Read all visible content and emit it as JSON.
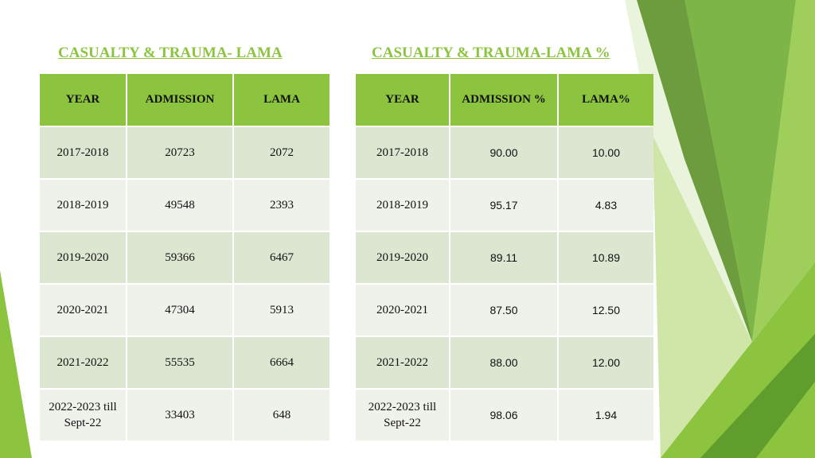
{
  "tables": [
    {
      "title": "CASUALTY & TRAUMA- LAMA",
      "header": [
        "YEAR",
        "ADMISSION",
        "LAMA"
      ],
      "rows": [
        [
          "2017-2018",
          "20723",
          "2072"
        ],
        [
          "2018-2019",
          "49548",
          "2393"
        ],
        [
          "2019-2020",
          "59366",
          "6467"
        ],
        [
          "2020-2021",
          "47304",
          "5913"
        ],
        [
          "2021-2022",
          "55535",
          "6664"
        ],
        [
          "2022-2023 till Sept-22",
          "33403",
          "648"
        ]
      ]
    },
    {
      "title": "CASUALTY & TRAUMA-LAMA %",
      "header": [
        "YEAR",
        "ADMISSION %",
        "LAMA%"
      ],
      "rows": [
        [
          "2017-2018",
          "90.00",
          "10.00"
        ],
        [
          "2018-2019",
          "95.17",
          "4.83"
        ],
        [
          "2019-2020",
          "89.11",
          "10.89"
        ],
        [
          "2020-2021",
          "87.50",
          "12.50"
        ],
        [
          "2021-2022",
          "88.00",
          "12.00"
        ],
        [
          "2022-2023 till Sept-22",
          "98.06",
          "1.94"
        ]
      ]
    }
  ]
}
